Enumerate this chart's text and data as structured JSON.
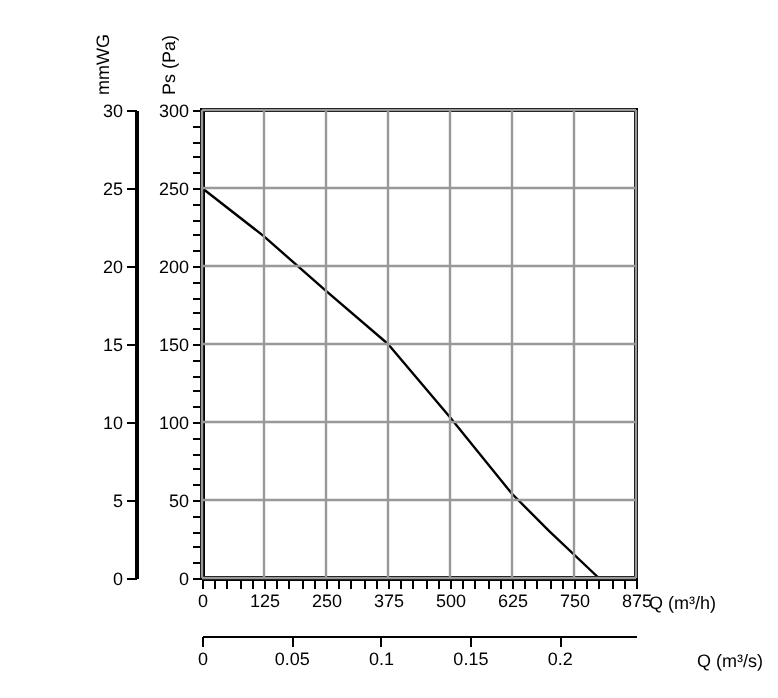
{
  "chart_data": {
    "type": "line",
    "xlabel": "Q (m³/h)",
    "ylabel": "Ps (Pa)",
    "y2label": "mmWG",
    "x2label": "Q (m³/s)",
    "series": [
      {
        "color": "#000000",
        "x": [
          0,
          125,
          250,
          375,
          500,
          625,
          700,
          800
        ],
        "values": [
          250,
          219,
          184,
          150,
          103,
          54,
          30,
          0
        ]
      }
    ],
    "xlim": [
      0,
      875
    ],
    "xticks": [
      0,
      {
        "value": 25,
        "label": null
      },
      {
        "value": 50,
        "label": null
      },
      {
        "value": 75,
        "label": null
      },
      {
        "value": 100,
        "label": null
      },
      125,
      {
        "value": 150,
        "label": null
      },
      {
        "value": 175,
        "label": null
      },
      {
        "value": 200,
        "label": null
      },
      {
        "value": 225,
        "label": null
      },
      250,
      {
        "value": 275,
        "label": null
      },
      {
        "value": 300,
        "label": null
      },
      {
        "value": 325,
        "label": null
      },
      {
        "value": 350,
        "label": null
      },
      375,
      {
        "value": 400,
        "label": null
      },
      {
        "value": 425,
        "label": null
      },
      {
        "value": 450,
        "label": null
      },
      {
        "value": 475,
        "label": null
      },
      500,
      {
        "value": 525,
        "label": null
      },
      {
        "value": 550,
        "label": null
      },
      {
        "value": 575,
        "label": null
      },
      {
        "value": 600,
        "label": null
      },
      625,
      {
        "value": 650,
        "label": null
      },
      {
        "value": 675,
        "label": null
      },
      {
        "value": 700,
        "label": null
      },
      {
        "value": 725,
        "label": null
      },
      750,
      {
        "value": 775,
        "label": null
      },
      {
        "value": 800,
        "label": null
      },
      {
        "value": 825,
        "label": null
      },
      {
        "value": 850,
        "label": null
      },
      875
    ],
    "ylim": [
      0,
      300
    ],
    "yticks": [
      0,
      {
        "value": 10,
        "label": null
      },
      {
        "value": 20,
        "label": null
      },
      {
        "value": 30,
        "label": null
      },
      {
        "value": 40,
        "label": null
      },
      50,
      {
        "value": 60,
        "label": null
      },
      {
        "value": 70,
        "label": null
      },
      {
        "value": 80,
        "label": null
      },
      {
        "value": 90,
        "label": null
      },
      100,
      {
        "value": 110,
        "label": null
      },
      {
        "value": 120,
        "label": null
      },
      {
        "value": 130,
        "label": null
      },
      {
        "value": 140,
        "label": null
      },
      150,
      {
        "value": 160,
        "label": null
      },
      {
        "value": 170,
        "label": null
      },
      {
        "value": 180,
        "label": null
      },
      {
        "value": 190,
        "label": null
      },
      200,
      {
        "value": 210,
        "label": null
      },
      {
        "value": 220,
        "label": null
      },
      {
        "value": 230,
        "label": null
      },
      {
        "value": 240,
        "label": null
      },
      250,
      {
        "value": 260,
        "label": null
      },
      {
        "value": 270,
        "label": null
      },
      {
        "value": 280,
        "label": null
      },
      {
        "value": 290,
        "label": null
      },
      300
    ],
    "y2lim": [
      0,
      30
    ],
    "y2ticks": [
      0,
      5,
      10,
      15,
      20,
      25,
      30
    ],
    "x2lim": [
      0,
      0.243
    ],
    "x2ticks": [
      0,
      0.05,
      0.1,
      0.15,
      0.2
    ],
    "grid": true,
    "line_style": "solid"
  }
}
